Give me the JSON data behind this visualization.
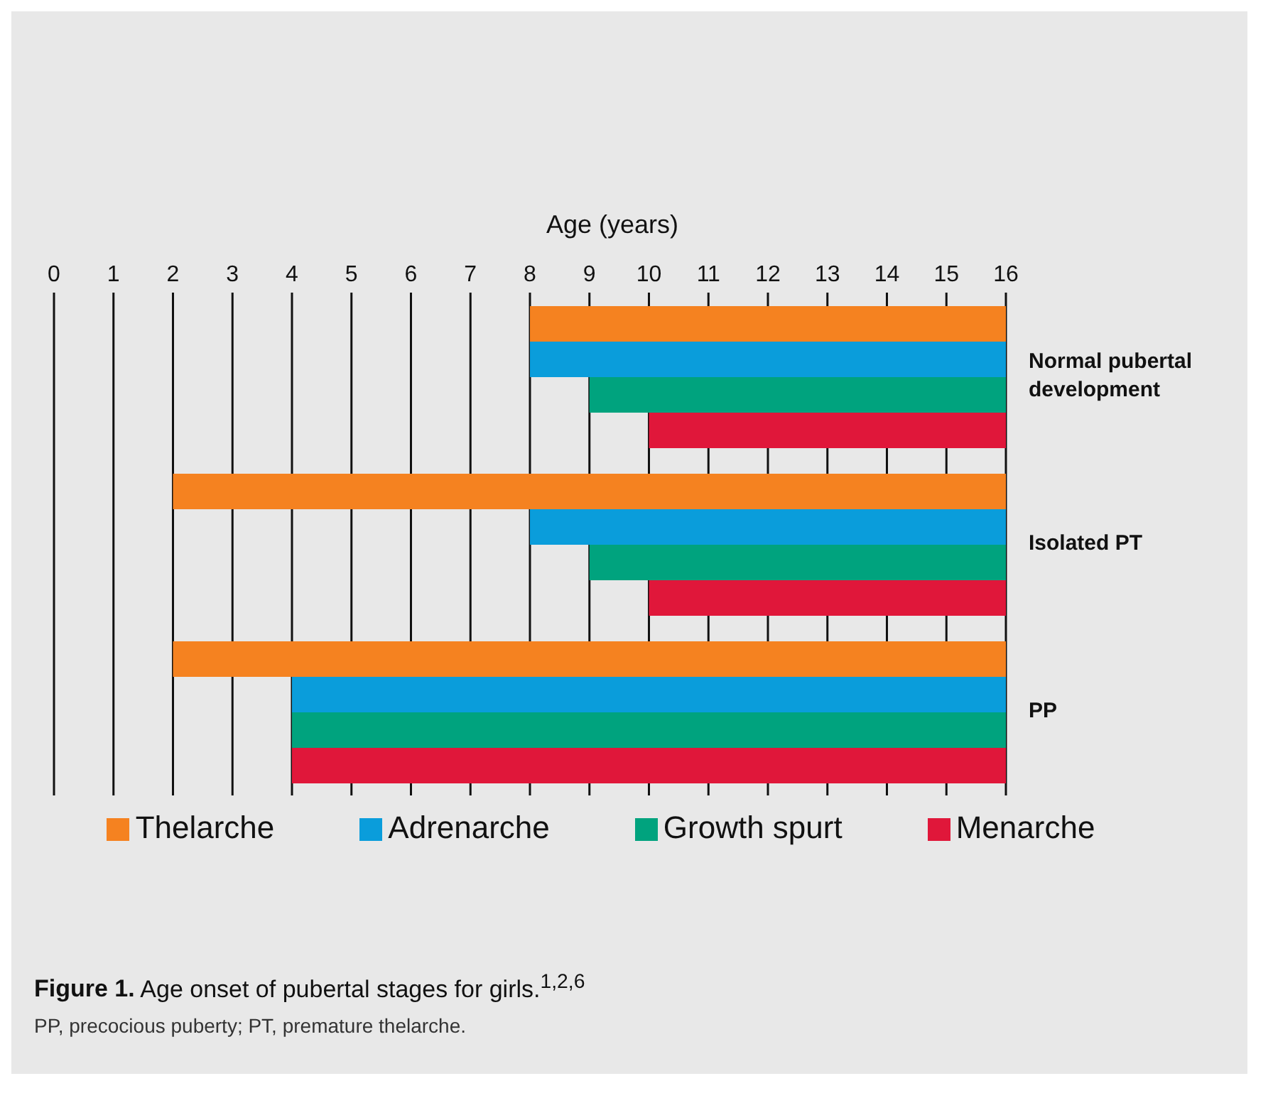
{
  "chart_data": {
    "type": "bar",
    "orientation": "horizontal",
    "title": "Figure 1. Age onset of pubertal stages for girls.$^{1,2,6}$",
    "xlabel": "Age (years)",
    "categories": [
      "Normal pubertal development",
      "Isolated PT",
      "PP"
    ],
    "series": [
      {
        "name": "Thelarche",
        "color": "#f58220",
        "base": [
          8,
          2,
          2
        ],
        "values": [
          8,
          14,
          14
        ]
      },
      {
        "name": "Adrenarche",
        "color": "#0a9ddb",
        "base": [
          8,
          8,
          4
        ],
        "values": [
          8,
          8,
          12
        ]
      },
      {
        "name": "Growth spurt",
        "color": "#00a37e",
        "base": [
          9,
          9,
          4
        ],
        "values": [
          7,
          7,
          12
        ]
      },
      {
        "name": "Menarche",
        "color": "#e0173a",
        "base": [
          10,
          10,
          4
        ],
        "values": [
          6,
          6,
          12
        ]
      }
    ],
    "xlim": [
      0,
      16
    ],
    "xticks": [
      0,
      1,
      2,
      3,
      4,
      5,
      6,
      7,
      8,
      9,
      10,
      11,
      12,
      13,
      14,
      15,
      16
    ],
    "grid": "x",
    "legend": "bottom",
    "annotations": [
      "PP, precocious puberty; PT, premature thelarche."
    ]
  }
}
